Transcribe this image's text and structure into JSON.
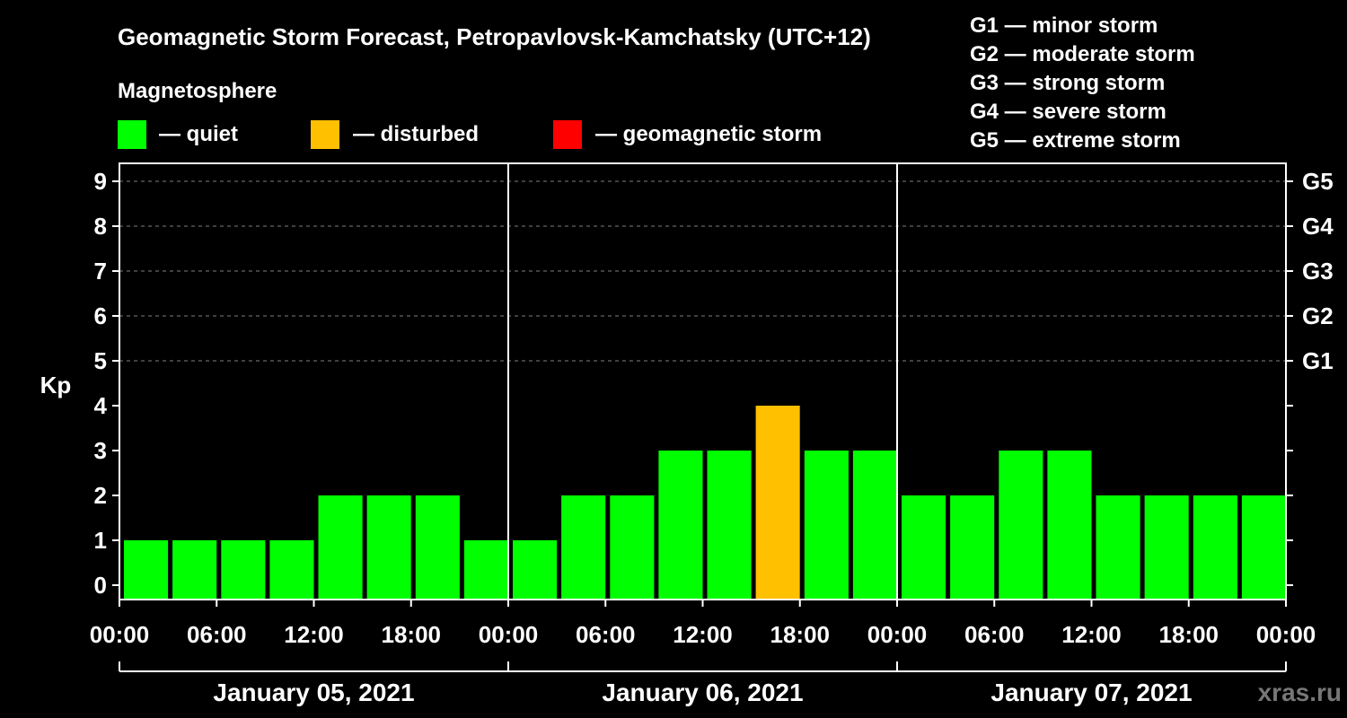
{
  "chart_data": {
    "type": "bar",
    "title": "Geomagnetic Storm Forecast, Petropavlovsk-Kamchatsky (UTC+12)",
    "legend_heading": "Magnetosphere",
    "legend": [
      {
        "label": "— quiet",
        "color": "#00ff00"
      },
      {
        "label": "— disturbed",
        "color": "#ffc000"
      },
      {
        "label": "— geomagnetic storm",
        "color": "#ff0000"
      }
    ],
    "storm_scale": [
      "G1 — minor storm",
      "G2 — moderate storm",
      "G3 — strong storm",
      "G4 — severe storm",
      "G5 — extreme storm"
    ],
    "ylabel": "Kp",
    "ylim": [
      0,
      9
    ],
    "yticks": [
      "0",
      "1",
      "2",
      "3",
      "4",
      "5",
      "6",
      "7",
      "8",
      "9"
    ],
    "right_ticks": [
      {
        "kp": 5,
        "label": "G1"
      },
      {
        "kp": 6,
        "label": "G2"
      },
      {
        "kp": 7,
        "label": "G3"
      },
      {
        "kp": 8,
        "label": "G4"
      },
      {
        "kp": 9,
        "label": "G5"
      }
    ],
    "x_tick_labels": [
      "00:00",
      "06:00",
      "12:00",
      "18:00",
      "00:00",
      "06:00",
      "12:00",
      "18:00",
      "00:00",
      "06:00",
      "12:00",
      "18:00",
      "00:00"
    ],
    "days": [
      "January 05, 2021",
      "January 06, 2021",
      "January 07, 2021"
    ],
    "interval_hours": 3,
    "values": [
      1,
      1,
      1,
      1,
      2,
      2,
      2,
      1,
      1,
      2,
      2,
      3,
      3,
      4,
      3,
      3,
      2,
      2,
      3,
      3,
      2,
      2,
      2,
      2
    ],
    "bar_colors": [
      "#00ff00",
      "#00ff00",
      "#00ff00",
      "#00ff00",
      "#00ff00",
      "#00ff00",
      "#00ff00",
      "#00ff00",
      "#00ff00",
      "#00ff00",
      "#00ff00",
      "#00ff00",
      "#00ff00",
      "#ffc000",
      "#00ff00",
      "#00ff00",
      "#00ff00",
      "#00ff00",
      "#00ff00",
      "#00ff00",
      "#00ff00",
      "#00ff00",
      "#00ff00",
      "#00ff00"
    ],
    "grid_color": "#808080",
    "watermark": "xras.ru"
  }
}
